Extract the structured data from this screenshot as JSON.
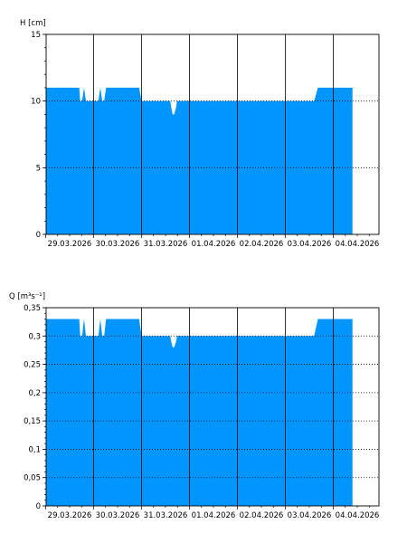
{
  "colors": {
    "fill": "#0095ff",
    "axis": "#000000",
    "grid": "#000000",
    "background": "#ffffff"
  },
  "chart_data": [
    {
      "type": "area",
      "ylabel": "H [cm]",
      "ylim": [
        0,
        15
      ],
      "yticks": [
        0,
        5,
        10,
        15
      ],
      "ytick_labels": [
        "0",
        "5",
        "10",
        "15"
      ],
      "grid": "vertical solid at day boundaries, horizontal dotted at major ticks",
      "x_categories": [
        "29.03.2026",
        "30.03.2026",
        "31.03.2026",
        "01.04.2026",
        "02.04.2026",
        "03.04.2026",
        "04.04.2026"
      ],
      "x_range_days": [
        0,
        7
      ],
      "series": [
        {
          "x": [
            0,
            0.7,
            0.72,
            0.76,
            0.8,
            0.84,
            0.88,
            1.1,
            1.14,
            1.18,
            1.22,
            1.26,
            1.4,
            1.95,
            2.0,
            2.55,
            2.6,
            2.62,
            2.65,
            2.68,
            2.72,
            2.74,
            2.78,
            2.8,
            2.82,
            3.0,
            4.0,
            5.0,
            5.6,
            5.68,
            6.0,
            6.4
          ],
          "y": [
            11,
            11,
            10,
            10,
            11,
            10,
            10,
            10,
            11,
            10,
            10,
            11,
            11,
            11,
            10,
            10,
            10,
            9.5,
            9,
            9,
            9.5,
            10,
            10,
            10,
            10,
            10,
            10,
            10,
            10,
            11,
            11,
            11
          ]
        }
      ]
    },
    {
      "type": "area",
      "ylabel": "Q [m³s⁻¹]",
      "ylim": [
        0,
        0.35
      ],
      "yticks": [
        0,
        0.05,
        0.1,
        0.15,
        0.2,
        0.25,
        0.3,
        0.35
      ],
      "ytick_labels": [
        "0",
        "0,05",
        "0,1",
        "0,15",
        "0,2",
        "0,25",
        "0,3",
        "0,35"
      ],
      "grid": "vertical solid at day boundaries, horizontal dotted at major ticks",
      "x_categories": [
        "29.03.2026",
        "30.03.2026",
        "31.03.2026",
        "01.04.2026",
        "02.04.2026",
        "03.04.2026",
        "04.04.2026"
      ],
      "x_range_days": [
        0,
        7
      ],
      "series": [
        {
          "x": [
            0,
            0.7,
            0.72,
            0.76,
            0.8,
            0.84,
            0.88,
            1.1,
            1.14,
            1.18,
            1.22,
            1.26,
            1.4,
            1.95,
            2.0,
            2.55,
            2.6,
            2.62,
            2.65,
            2.68,
            2.72,
            2.74,
            2.78,
            2.8,
            2.82,
            3.0,
            4.0,
            5.0,
            5.6,
            5.68,
            6.0,
            6.4
          ],
          "y": [
            0.33,
            0.33,
            0.3,
            0.3,
            0.33,
            0.3,
            0.3,
            0.3,
            0.33,
            0.3,
            0.3,
            0.33,
            0.33,
            0.33,
            0.3,
            0.3,
            0.3,
            0.29,
            0.28,
            0.28,
            0.29,
            0.3,
            0.3,
            0.3,
            0.3,
            0.3,
            0.3,
            0.3,
            0.3,
            0.33,
            0.33,
            0.33
          ]
        }
      ]
    }
  ]
}
